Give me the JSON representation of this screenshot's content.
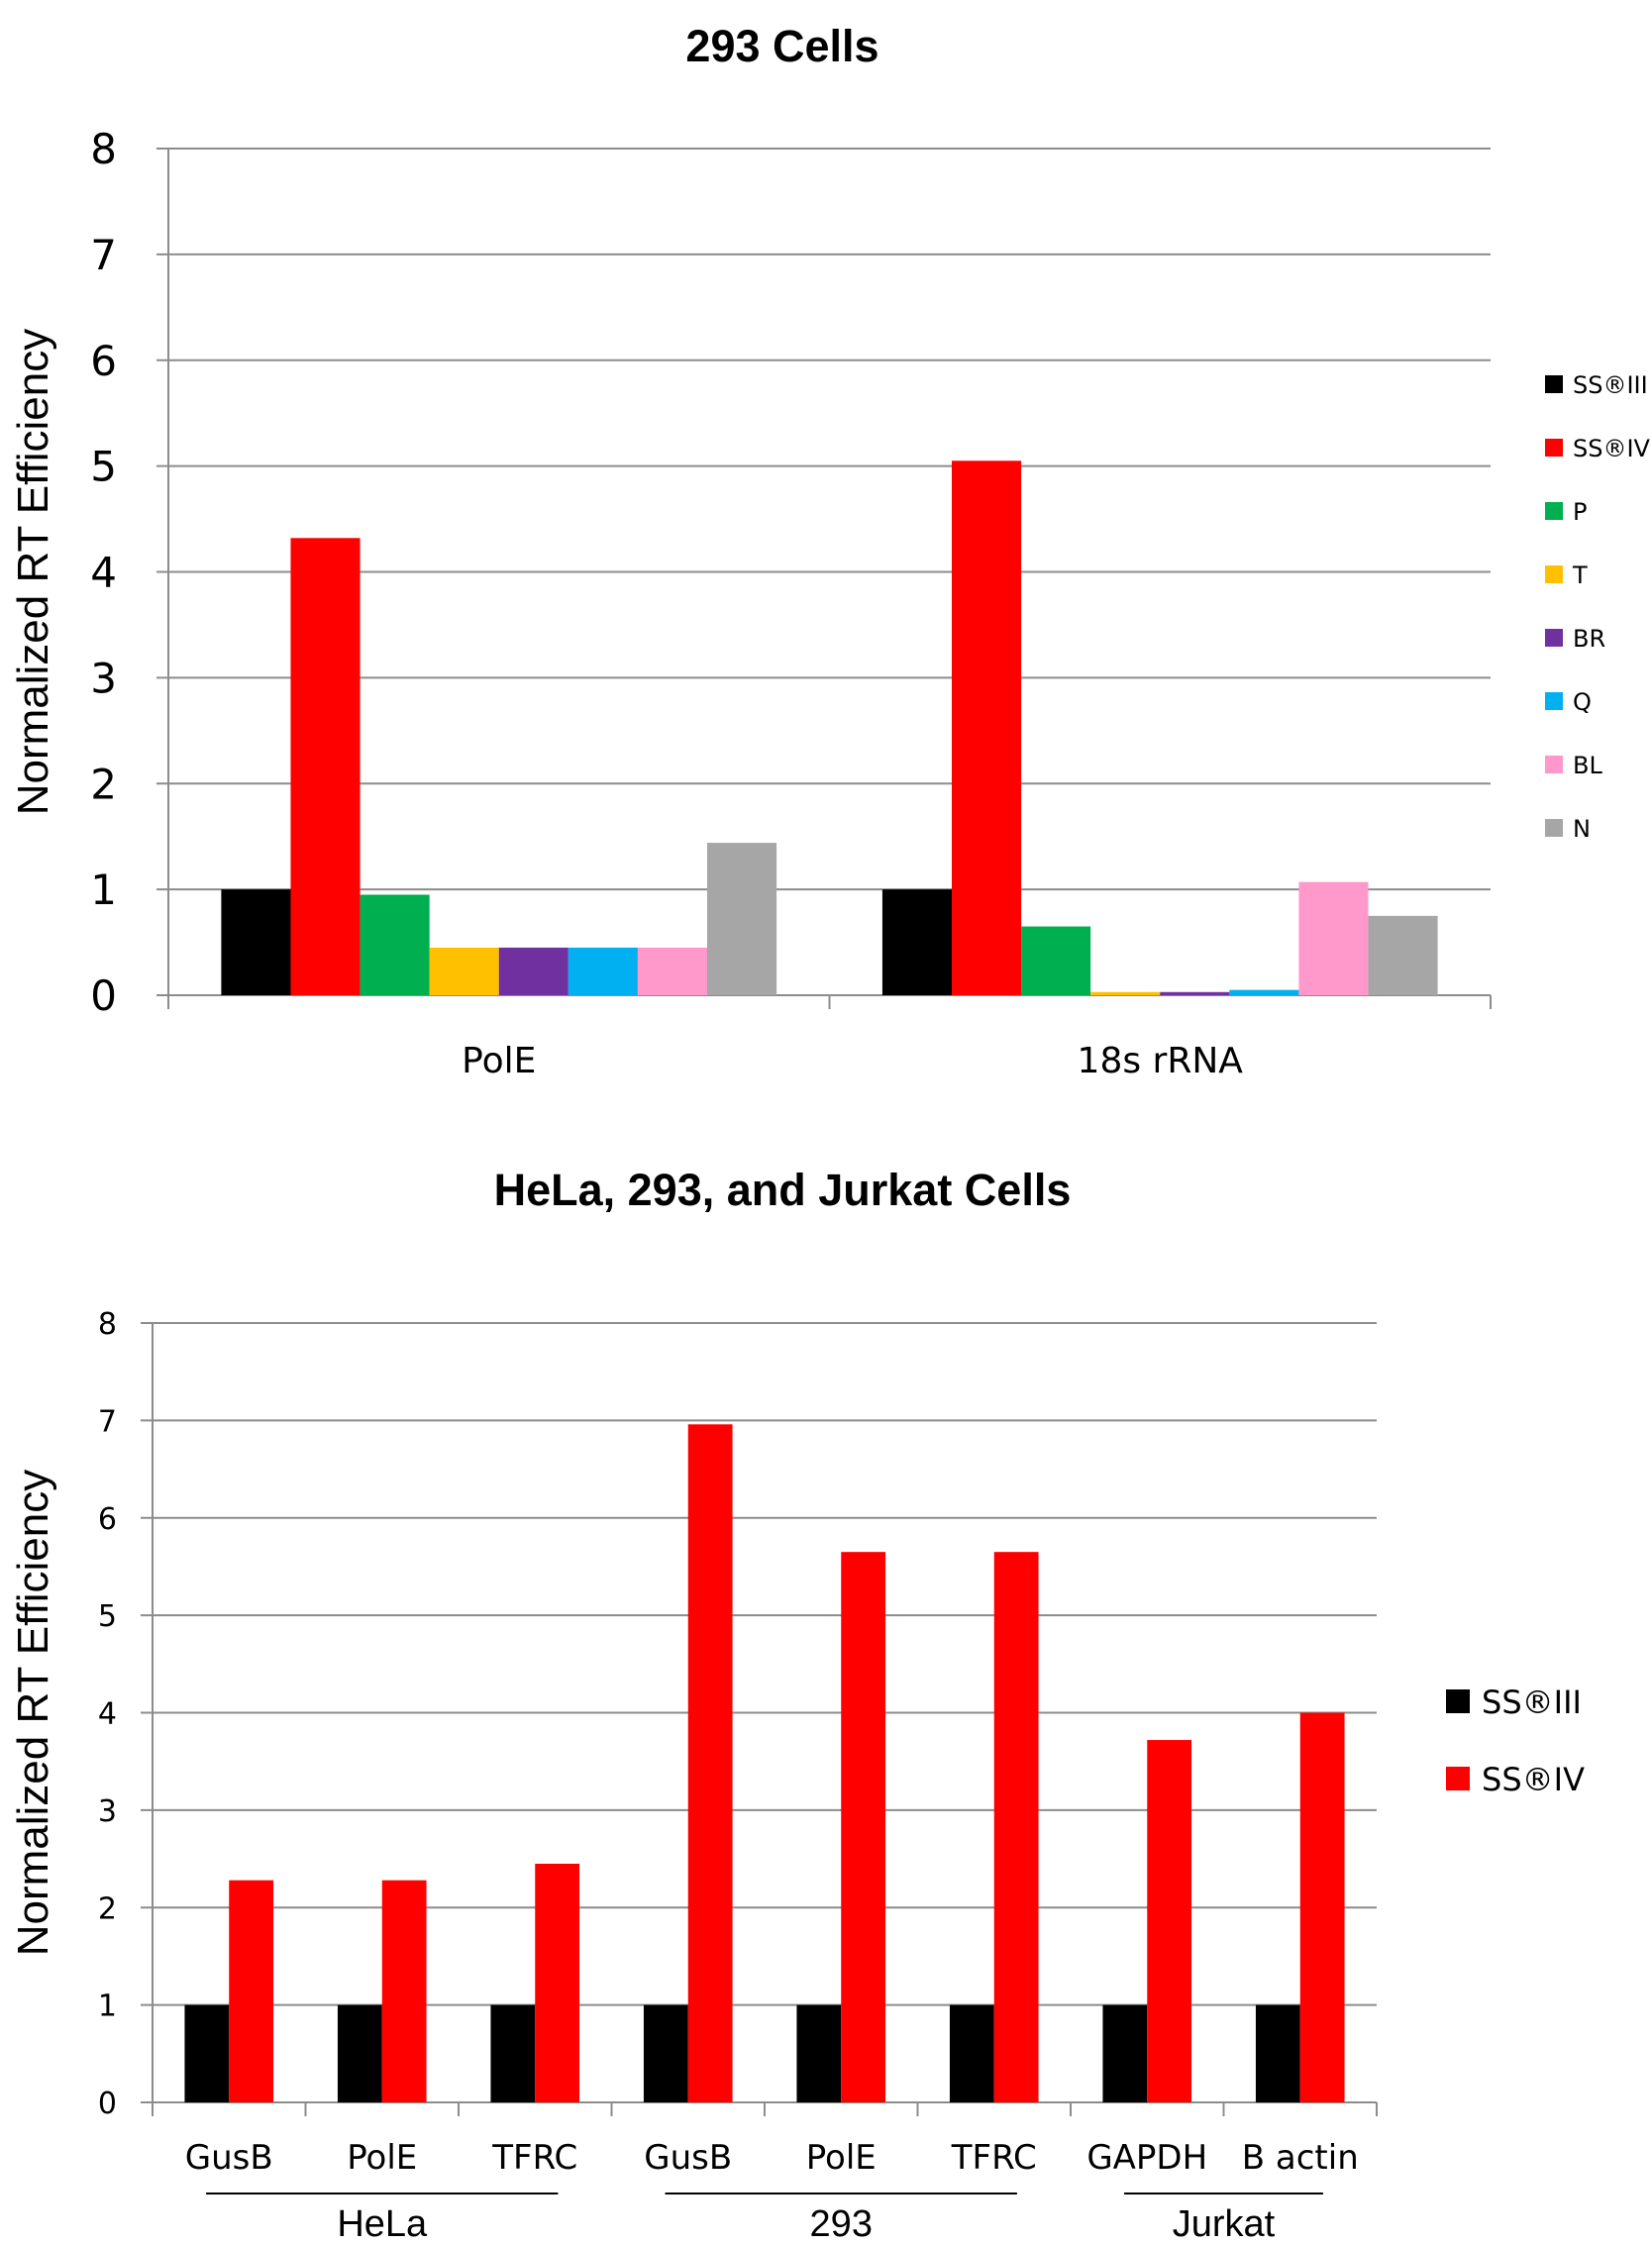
{
  "chart_data": [
    {
      "type": "bar",
      "title": "293 Cells",
      "xlabel": "",
      "ylabel": "Normalized RT Efficiency",
      "ylim": [
        0,
        8
      ],
      "yticks": [
        0,
        1,
        2,
        3,
        4,
        5,
        6,
        7,
        8
      ],
      "grid": true,
      "legend_position": "right",
      "categories": [
        "PolE",
        "18s rRNA"
      ],
      "series": [
        {
          "name": "SS®III",
          "color": "#000000",
          "values": [
            1.0,
            1.0
          ]
        },
        {
          "name": "SS®IV",
          "color": "#ff0000",
          "values": [
            4.32,
            5.05
          ]
        },
        {
          "name": "P",
          "color": "#00b050",
          "values": [
            0.95,
            0.65
          ]
        },
        {
          "name": "T",
          "color": "#ffc000",
          "values": [
            0.45,
            0.03
          ]
        },
        {
          "name": "BR",
          "color": "#7030a0",
          "values": [
            0.45,
            0.03
          ]
        },
        {
          "name": "Q",
          "color": "#00b0f0",
          "values": [
            0.45,
            0.05
          ]
        },
        {
          "name": "BL",
          "color": "#ff99cc",
          "values": [
            0.45,
            1.07
          ]
        },
        {
          "name": "N",
          "color": "#a6a6a6",
          "values": [
            1.44,
            0.75
          ]
        }
      ]
    },
    {
      "type": "bar",
      "title": "HeLa, 293, and Jurkat Cells",
      "xlabel": "",
      "ylabel": "Normalized RT Efficiency",
      "ylim": [
        0,
        8
      ],
      "yticks": [
        0,
        1,
        2,
        3,
        4,
        5,
        6,
        7,
        8
      ],
      "grid": true,
      "legend_position": "right",
      "categories": [
        "GusB",
        "PolE",
        "TFRC",
        "GusB",
        "PolE",
        "TFRC",
        "GAPDH",
        "B actin"
      ],
      "groups": [
        {
          "label": "HeLa",
          "start": 0,
          "end": 2
        },
        {
          "label": "293",
          "start": 3,
          "end": 5
        },
        {
          "label": "Jurkat",
          "start": 6,
          "end": 7
        }
      ],
      "series": [
        {
          "name": "SS®III",
          "color": "#000000",
          "values": [
            1,
            1,
            1,
            1,
            1,
            1,
            1,
            1
          ]
        },
        {
          "name": "SS®IV",
          "color": "#ff0000",
          "values": [
            2.28,
            2.28,
            2.45,
            6.96,
            5.65,
            5.65,
            3.72,
            4.0
          ]
        }
      ]
    }
  ]
}
